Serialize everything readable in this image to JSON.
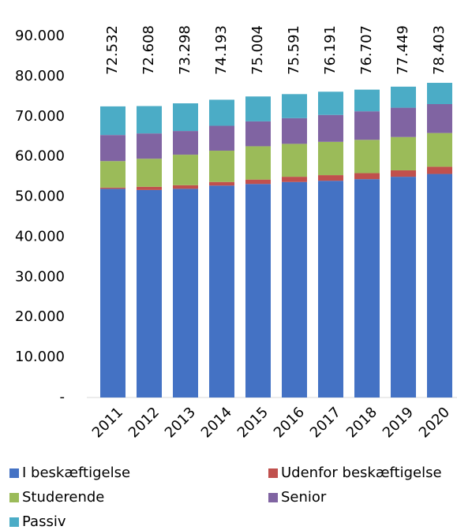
{
  "chart_data": {
    "type": "stacked_bar",
    "categories": [
      "2011",
      "2012",
      "2013",
      "2014",
      "2015",
      "2016",
      "2017",
      "2018",
      "2019",
      "2020"
    ],
    "series": [
      {
        "name": "I beskæftigelse",
        "color": "#4472c4",
        "values": [
          52000,
          51700,
          52000,
          52800,
          53200,
          53700,
          54000,
          54400,
          55000,
          55700
        ]
      },
      {
        "name": "Udenfor beskæftigelse",
        "color": "#c0504d",
        "values": [
          300,
          800,
          900,
          900,
          1100,
          1300,
          1400,
          1500,
          1600,
          1800
        ]
      },
      {
        "name": "Studerende",
        "color": "#9bbb59",
        "values": [
          6600,
          7000,
          7600,
          7800,
          8300,
          8200,
          8300,
          8300,
          8300,
          8400
        ]
      },
      {
        "name": "Senior",
        "color": "#8064a2",
        "values": [
          6500,
          6300,
          5900,
          6200,
          6200,
          6400,
          6700,
          7100,
          7300,
          7200
        ]
      },
      {
        "name": "Passiv",
        "color": "#4bacc6",
        "values": [
          7132,
          6808,
          6898,
          6493,
          6204,
          5991,
          5791,
          5407,
          5249,
          5303
        ]
      }
    ],
    "totals": {
      "values": [
        72532,
        72608,
        73298,
        74193,
        75004,
        75591,
        76191,
        76707,
        77449,
        78403
      ],
      "value_labels": [
        "72.532",
        "72.608",
        "73.298",
        "74.193",
        "75.004",
        "75.591",
        "76.191",
        "76.707",
        "77.449",
        "78.403"
      ]
    },
    "ylim": [
      0,
      90000
    ],
    "yticks": [
      {
        "value": 0,
        "label": "-"
      },
      {
        "value": 10000,
        "label": "10.000"
      },
      {
        "value": 20000,
        "label": "20.000"
      },
      {
        "value": 30000,
        "label": "30.000"
      },
      {
        "value": 40000,
        "label": "40.000"
      },
      {
        "value": 50000,
        "label": "50.000"
      },
      {
        "value": 60000,
        "label": "60.000"
      },
      {
        "value": 70000,
        "label": "70.000"
      },
      {
        "value": 80000,
        "label": "80.000"
      },
      {
        "value": 90000,
        "label": "90.000"
      }
    ],
    "grid": false
  }
}
